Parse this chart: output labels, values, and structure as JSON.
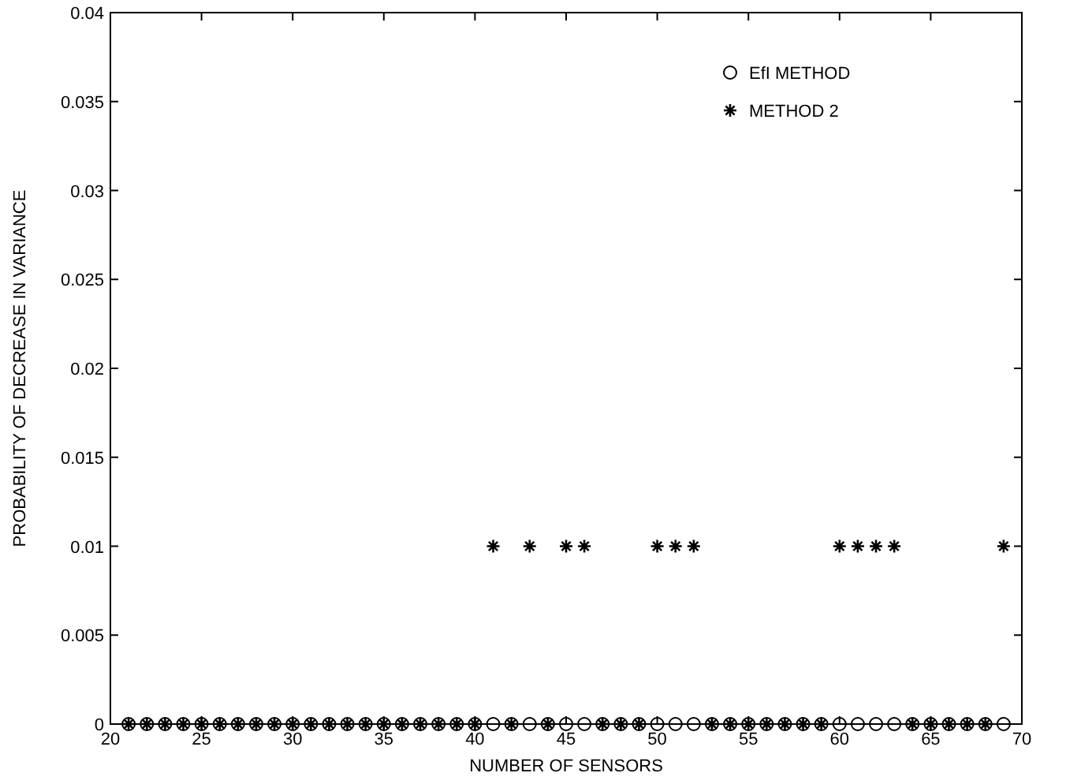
{
  "chart_data": {
    "type": "scatter",
    "xlabel": "NUMBER OF SENSORS",
    "ylabel": "PROBABILITY OF DECREASE IN VARIANCE",
    "xlim": [
      20,
      70
    ],
    "ylim": [
      0,
      0.04
    ],
    "xticks": [
      20,
      25,
      30,
      35,
      40,
      45,
      50,
      55,
      60,
      65,
      70
    ],
    "yticks": [
      0,
      0.005,
      0.01,
      0.015,
      0.02,
      0.025,
      0.03,
      0.035,
      0.04
    ],
    "grid": false,
    "legend": "top right",
    "x": [
      21,
      22,
      23,
      24,
      25,
      26,
      27,
      28,
      29,
      30,
      31,
      32,
      33,
      34,
      35,
      36,
      37,
      38,
      39,
      40,
      41,
      42,
      43,
      44,
      45,
      46,
      47,
      48,
      49,
      50,
      51,
      52,
      53,
      54,
      55,
      56,
      57,
      58,
      59,
      60,
      61,
      62,
      63,
      64,
      65,
      66,
      67,
      68,
      69
    ],
    "series": [
      {
        "name": "EfI METHOD",
        "color": "#000000",
        "marker": "circle",
        "values": [
          0,
          0,
          0,
          0,
          0,
          0,
          0,
          0,
          0,
          0,
          0,
          0,
          0,
          0,
          0,
          0,
          0,
          0,
          0,
          0,
          0,
          0,
          0,
          0,
          0,
          0,
          0,
          0,
          0,
          0,
          0,
          0,
          0,
          0,
          0,
          0,
          0,
          0,
          0,
          0,
          0,
          0,
          0,
          0,
          0,
          0,
          0,
          0,
          0
        ]
      },
      {
        "name": "METHOD 2",
        "color": "#000000",
        "marker": "cross",
        "values": [
          0,
          0,
          0,
          0,
          0,
          0,
          0,
          0,
          0,
          0,
          0,
          0,
          0,
          0,
          0,
          0,
          0,
          0,
          0,
          0,
          0.01,
          0,
          0.01,
          0,
          0.01,
          0.01,
          0,
          0,
          0,
          0.01,
          0.01,
          0.01,
          0,
          0,
          0,
          0,
          0,
          0,
          0,
          0.01,
          0.01,
          0.01,
          0.01,
          0,
          0,
          0,
          0,
          0,
          0.01
        ]
      }
    ]
  }
}
